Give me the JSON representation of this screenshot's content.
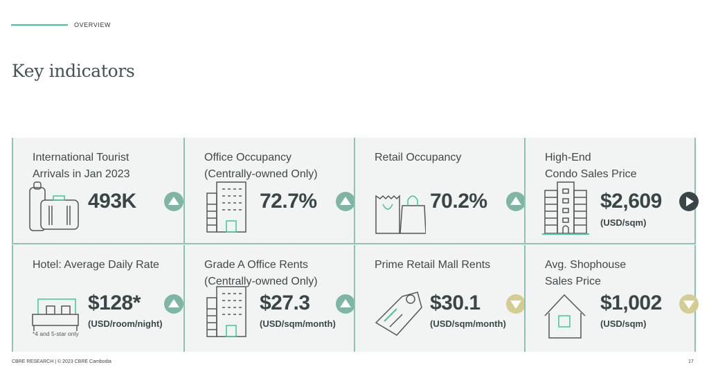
{
  "header": {
    "section": "OVERVIEW",
    "title": "Key indicators"
  },
  "colors": {
    "accent": "#3ec79a",
    "border": "#8bc3b1",
    "up": "#7fb5a4",
    "down": "#d4cc91",
    "flat": "#3a4547"
  },
  "indicators": [
    {
      "title": "International Tourist\nArrivals in Jan 2023",
      "value": "493K",
      "unit": "",
      "trend": "up",
      "icon": "luggage-icon"
    },
    {
      "title": "Office Occupancy\n(Centrally-owned Only)",
      "value": "72.7%",
      "unit": "",
      "trend": "up",
      "icon": "office-building-icon"
    },
    {
      "title": "Retail Occupancy",
      "value": "70.2%",
      "unit": "",
      "trend": "up",
      "icon": "shopping-bags-icon"
    },
    {
      "title": "High-End\nCondo Sales Price",
      "value": "$2,609",
      "unit": "(USD/sqm)",
      "trend": "flat",
      "icon": "condo-tower-icon"
    },
    {
      "title": "Hotel: Average Daily Rate",
      "value": "$128*",
      "unit": "(USD/room/night)",
      "note": "*4 and 5-star only",
      "trend": "up",
      "icon": "bed-icon"
    },
    {
      "title": "Grade A Office Rents\n(Centrally-owned Only)",
      "value": "$27.3",
      "unit": "(USD/sqm/month)",
      "trend": "up",
      "icon": "office-building-icon"
    },
    {
      "title": "Prime Retail Mall Rents",
      "value": "$30.1",
      "unit": "(USD/sqm/month)",
      "trend": "down",
      "icon": "price-tag-icon"
    },
    {
      "title": "Avg. Shophouse\nSales Price",
      "value": "$1,002",
      "unit": "(USD/sqm)",
      "trend": "down",
      "icon": "house-icon"
    }
  ],
  "footer": {
    "text": "CBRE RESEARCH | © 2023 CBRE Cambodia",
    "page": "17"
  }
}
